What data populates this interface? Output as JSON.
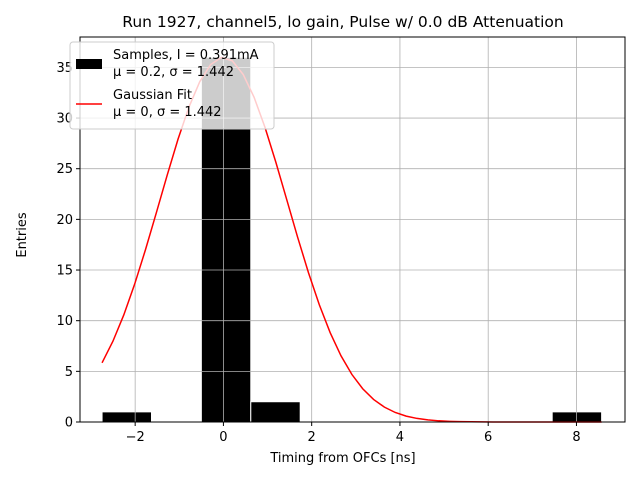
{
  "chart_data": {
    "type": "bar",
    "title": "Run 1927, channel5, lo gain, Pulse w/ 0.0 dB Attenuation",
    "xlabel": "Timing from OFCs [ns]",
    "ylabel": "Entries",
    "xlim": [
      -3.25,
      9.1
    ],
    "ylim": [
      0,
      38
    ],
    "xticks": [
      -2,
      0,
      2,
      4,
      6,
      8
    ],
    "xtick_labels": [
      "−2",
      "0",
      "2",
      "4",
      "6",
      "8"
    ],
    "yticks": [
      0,
      5,
      10,
      15,
      20,
      25,
      30,
      35
    ],
    "grid": true,
    "colors": {
      "bars": "#000000",
      "fit": "#ff0000",
      "grid": "#b0b0b0"
    },
    "histogram": {
      "name": "Samples",
      "bin_width": 1.12,
      "bins": [
        {
          "left": -2.75,
          "right": -1.63,
          "count": 1
        },
        {
          "left": -0.5,
          "right": 0.62,
          "count": 36
        },
        {
          "left": 0.62,
          "right": 1.74,
          "count": 2
        },
        {
          "left": 7.45,
          "right": 8.57,
          "count": 1
        }
      ]
    },
    "fit": {
      "name": "Gaussian Fit",
      "mu": 0,
      "sigma": 1.442,
      "amplitude": 36,
      "x_start": -2.75,
      "x_end": 8.57
    },
    "legend": {
      "location": "upper-left",
      "entries": [
        {
          "kind": "bar",
          "line1": "Samples, I = 0.391mA",
          "line2": "μ = 0.2, σ = 1.442"
        },
        {
          "kind": "line",
          "line1": "Gaussian Fit",
          "line2": "μ = 0, σ = 1.442"
        }
      ]
    }
  }
}
